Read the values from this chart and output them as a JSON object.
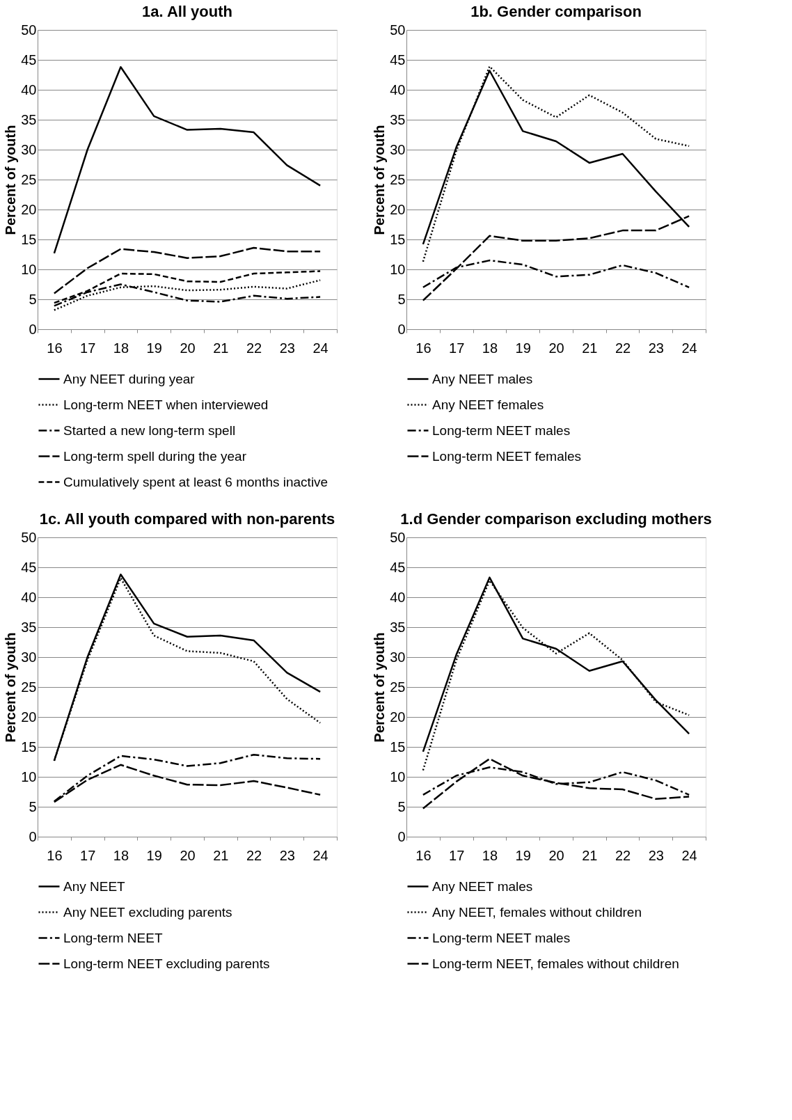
{
  "chart_data": [
    {
      "type": "line",
      "title": "1a. All youth",
      "ylabel": "Percent of youth",
      "categories": [
        "16",
        "17",
        "18",
        "19",
        "20",
        "21",
        "22",
        "23",
        "24"
      ],
      "ylim": [
        0,
        50
      ],
      "yticks": [
        0,
        5,
        10,
        15,
        20,
        25,
        30,
        35,
        40,
        45,
        50
      ],
      "grid": "y",
      "legend": "bottom",
      "marker": "none",
      "series": [
        {
          "name": "Any NEET during year",
          "color": "#000000",
          "line_style": "solid",
          "values": [
            12.7,
            30,
            43.8,
            35.6,
            33.3,
            33.5,
            32.9,
            27.4,
            24
          ]
        },
        {
          "name": "Long-term NEET when interviewed",
          "color": "#000000",
          "line_style": "dotted",
          "values": [
            3.2,
            5.6,
            7,
            7.2,
            6.5,
            6.6,
            7.1,
            6.8,
            8.2
          ]
        },
        {
          "name": "Started a new long-term spell",
          "color": "#000000",
          "line_style": "dashdot",
          "values": [
            3.9,
            6.2,
            7.5,
            6.2,
            4.8,
            4.6,
            5.6,
            5.1,
            5.4
          ]
        },
        {
          "name": "Long-term spell during the year",
          "color": "#000000",
          "line_style": "longdash",
          "values": [
            6,
            10.2,
            13.4,
            12.9,
            11.9,
            12.2,
            13.6,
            13,
            13
          ]
        },
        {
          "name": "Cumulatively spent at least 6 months inactive",
          "color": "#000000",
          "line_style": "dashed",
          "values": [
            4.4,
            6.4,
            9.3,
            9.2,
            8,
            7.9,
            9.3,
            9.5,
            9.7
          ]
        }
      ]
    },
    {
      "type": "line",
      "title": "1b. Gender comparison",
      "ylabel": "Percent of youth",
      "categories": [
        "16",
        "17",
        "18",
        "19",
        "20",
        "21",
        "22",
        "23",
        "24"
      ],
      "ylim": [
        0,
        50
      ],
      "yticks": [
        0,
        5,
        10,
        15,
        20,
        25,
        30,
        35,
        40,
        45,
        50
      ],
      "grid": "y",
      "legend": "bottom",
      "marker": "none",
      "series": [
        {
          "name": "Any NEET males",
          "color": "#000000",
          "line_style": "solid",
          "values": [
            14.2,
            30.4,
            43.2,
            33.1,
            31.4,
            27.8,
            29.3,
            23,
            17.1
          ]
        },
        {
          "name": "Any NEET females",
          "color": "#000000",
          "line_style": "dotted",
          "values": [
            11.3,
            29.8,
            43.9,
            38.3,
            35.4,
            39.1,
            36.2,
            31.8,
            30.6
          ]
        },
        {
          "name": "Long-term NEET males",
          "color": "#000000",
          "line_style": "dashdot",
          "values": [
            7,
            10.3,
            11.5,
            10.8,
            8.8,
            9.1,
            10.7,
            9.4,
            7
          ]
        },
        {
          "name": "Long-term NEET females",
          "color": "#000000",
          "line_style": "longdash",
          "values": [
            4.8,
            10.1,
            15.6,
            14.8,
            14.8,
            15.2,
            16.5,
            16.5,
            18.9
          ]
        }
      ]
    },
    {
      "type": "line",
      "title": "1c. All youth compared with non-parents",
      "ylabel": "Percent of youth",
      "categories": [
        "16",
        "17",
        "18",
        "19",
        "20",
        "21",
        "22",
        "23",
        "24"
      ],
      "ylim": [
        0,
        50
      ],
      "yticks": [
        0,
        5,
        10,
        15,
        20,
        25,
        30,
        35,
        40,
        45,
        50
      ],
      "grid": "y",
      "legend": "bottom",
      "marker": "none",
      "series": [
        {
          "name": "Any NEET",
          "color": "#000000",
          "line_style": "solid",
          "values": [
            12.7,
            30,
            43.8,
            35.6,
            33.4,
            33.6,
            32.8,
            27.4,
            24.2
          ]
        },
        {
          "name": "Any NEET excluding parents",
          "color": "#000000",
          "line_style": "dotted",
          "values": [
            12.7,
            29.5,
            43.2,
            33.6,
            31,
            30.7,
            29.3,
            23,
            19
          ]
        },
        {
          "name": "Long-term NEET",
          "color": "#000000",
          "line_style": "dashdot",
          "values": [
            5.9,
            10.2,
            13.5,
            12.9,
            11.8,
            12.3,
            13.7,
            13.1,
            13
          ]
        },
        {
          "name": "Long-term NEET excluding parents",
          "color": "#000000",
          "line_style": "longdash",
          "values": [
            5.8,
            9.5,
            12,
            10.2,
            8.7,
            8.6,
            9.3,
            8.2,
            7
          ]
        }
      ]
    },
    {
      "type": "line",
      "title": "1.d Gender comparison excluding mothers",
      "ylabel": "Percent of youth",
      "categories": [
        "16",
        "17",
        "18",
        "19",
        "20",
        "21",
        "22",
        "23",
        "24"
      ],
      "ylim": [
        0,
        50
      ],
      "yticks": [
        0,
        5,
        10,
        15,
        20,
        25,
        30,
        35,
        40,
        45,
        50
      ],
      "grid": "y",
      "legend": "bottom",
      "marker": "none",
      "series": [
        {
          "name": "Any NEET males",
          "color": "#000000",
          "line_style": "solid",
          "values": [
            14.2,
            30.4,
            43.3,
            33.1,
            31.4,
            27.7,
            29.3,
            22.8,
            17.2
          ]
        },
        {
          "name": "Any NEET, females without children",
          "color": "#000000",
          "line_style": "dotted",
          "values": [
            11.1,
            29.5,
            42.8,
            34.9,
            30.6,
            34,
            29.5,
            22.5,
            20.3
          ]
        },
        {
          "name": "Long-term NEET males",
          "color": "#000000",
          "line_style": "dashdot",
          "values": [
            7,
            10.2,
            11.6,
            10.8,
            8.8,
            9.1,
            10.8,
            9.4,
            7
          ]
        },
        {
          "name": "Long-term NEET, females without children",
          "color": "#000000",
          "line_style": "longdash",
          "values": [
            4.7,
            9.2,
            13,
            10.2,
            9,
            8.1,
            7.9,
            6.3,
            6.7
          ]
        }
      ]
    }
  ]
}
